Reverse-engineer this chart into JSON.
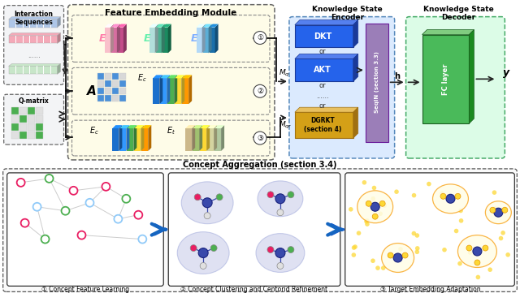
{
  "title_top": "Feature Embedding Module",
  "title_encoder": "Knowledge State\nEncoder",
  "title_decoder": "Knowledge State\nDecoder",
  "title_bottom": "Concept Aggregation (section 3.4)",
  "label_interaction": "Interaction\nSequences",
  "label_qmatrix": "Q-matrix",
  "label_mq": "$M_q$",
  "label_mqr": "$M_{qr}$",
  "label_h": "h",
  "label_y": "y",
  "label_dkt": "DKT",
  "label_akt": "AKT",
  "label_dgrkt": "DGRKT\n(section 4)",
  "label_seqin": "SeqIN\n(section 3.3)",
  "label_fc": "FC layer",
  "label_or": "or",
  "label_dots": "......",
  "label_caption1": "① Concept Feature Learning",
  "label_caption2": "② Concept Clustering and Centorid Refinement",
  "label_caption3": "③ Target Embedding Adaptation",
  "circle1": "①",
  "circle2": "②",
  "circle3": "③",
  "bg_color": "#ffffff",
  "yellow_bg": "#fefce8",
  "light_blue_bg": "#dbeafe",
  "light_green_bg": "#dcfce7",
  "gray_bg": "#f3f4f6",
  "interaction_bar_colors": [
    "#aec6e8",
    "#f4a9b8",
    "#c8e6c9"
  ],
  "e1_colors": [
    "#f9c0cb",
    "#d66fa0",
    "#c44c8a"
  ],
  "e2_colors": [
    "#b2dfdb",
    "#4caf90",
    "#1b8a60"
  ],
  "e3_colors": [
    "#b3d9f7",
    "#5baed6",
    "#1a6faa"
  ],
  "ec_colors": [
    "#1a6fcc",
    "#3399ff",
    "#4caf50",
    "#fdd835",
    "#ff9800"
  ],
  "et_colors": [
    "#ccb88a",
    "#a0c070",
    "#fdd835",
    "#d4d4a0",
    "#b0c8a0"
  ],
  "qmat_green": "#4caf50",
  "qmat_gray": "#e0e0e0",
  "dkt_color": "#2563eb",
  "akt_color": "#2563eb",
  "dgrkt_color": "#d4a017",
  "seqin_color": "#9b7eb8",
  "fc_color": "#4aba5a",
  "arrow_color": "#222222",
  "node_pink": "#e91e63",
  "node_green": "#4caf50",
  "node_blue": "#90caf9",
  "cluster_fill": "#c5cae9",
  "center_node": "#3949ab",
  "yellow_dot": "#fdd835"
}
